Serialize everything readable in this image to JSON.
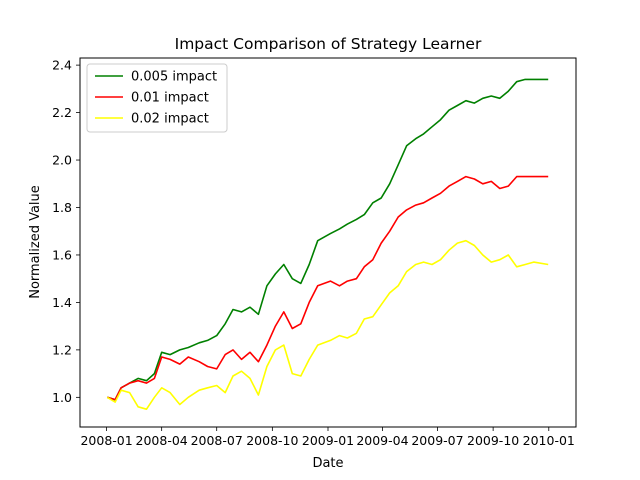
{
  "chart_data": {
    "type": "line",
    "title": "Impact Comparison of Strategy Learner",
    "xlabel": "Date",
    "ylabel": "Normalized Value",
    "x_tick_labels": [
      "2008-01",
      "2008-04",
      "2008-07",
      "2008-10",
      "2009-01",
      "2009-04",
      "2009-07",
      "2009-10",
      "2010-01"
    ],
    "x_ticks": [
      "2008-01-01",
      "2008-04-01",
      "2008-07-01",
      "2008-10-01",
      "2009-01-01",
      "2009-04-01",
      "2009-07-01",
      "2009-10-01",
      "2010-01-01"
    ],
    "xlim": [
      "2007-11-18",
      "2010-02-15"
    ],
    "y_tick_labels": [
      "1.0",
      "1.2",
      "1.4",
      "1.6",
      "1.8",
      "2.0",
      "2.2",
      "2.4"
    ],
    "y_ticks": [
      1.0,
      1.2,
      1.4,
      1.6,
      1.8,
      2.0,
      2.2,
      2.4
    ],
    "ylim": [
      0.875,
      2.43
    ],
    "grid": false,
    "legend": "top-left",
    "series": [
      {
        "name": "0.005 impact",
        "color": "#008000",
        "points": [
          [
            "2008-01-02",
            1.0
          ],
          [
            "2008-01-15",
            0.99
          ],
          [
            "2008-01-25",
            1.04
          ],
          [
            "2008-02-08",
            1.06
          ],
          [
            "2008-02-22",
            1.08
          ],
          [
            "2008-03-07",
            1.07
          ],
          [
            "2008-03-20",
            1.1
          ],
          [
            "2008-04-01",
            1.19
          ],
          [
            "2008-04-15",
            1.18
          ],
          [
            "2008-05-01",
            1.2
          ],
          [
            "2008-05-15",
            1.21
          ],
          [
            "2008-06-02",
            1.23
          ],
          [
            "2008-06-16",
            1.24
          ],
          [
            "2008-07-01",
            1.26
          ],
          [
            "2008-07-15",
            1.31
          ],
          [
            "2008-07-28",
            1.37
          ],
          [
            "2008-08-11",
            1.36
          ],
          [
            "2008-08-25",
            1.38
          ],
          [
            "2008-09-08",
            1.35
          ],
          [
            "2008-09-22",
            1.47
          ],
          [
            "2008-10-06",
            1.52
          ],
          [
            "2008-10-20",
            1.56
          ],
          [
            "2008-11-03",
            1.5
          ],
          [
            "2008-11-17",
            1.48
          ],
          [
            "2008-12-01",
            1.56
          ],
          [
            "2008-12-15",
            1.66
          ],
          [
            "2009-01-05",
            1.69
          ],
          [
            "2009-01-20",
            1.71
          ],
          [
            "2009-02-02",
            1.73
          ],
          [
            "2009-02-17",
            1.75
          ],
          [
            "2009-03-02",
            1.77
          ],
          [
            "2009-03-16",
            1.82
          ],
          [
            "2009-03-30",
            1.84
          ],
          [
            "2009-04-13",
            1.9
          ],
          [
            "2009-04-27",
            1.98
          ],
          [
            "2009-05-11",
            2.06
          ],
          [
            "2009-05-26",
            2.09
          ],
          [
            "2009-06-08",
            2.11
          ],
          [
            "2009-06-22",
            2.14
          ],
          [
            "2009-07-06",
            2.17
          ],
          [
            "2009-07-20",
            2.21
          ],
          [
            "2009-08-03",
            2.23
          ],
          [
            "2009-08-17",
            2.25
          ],
          [
            "2009-08-31",
            2.24
          ],
          [
            "2009-09-14",
            2.26
          ],
          [
            "2009-09-28",
            2.27
          ],
          [
            "2009-10-12",
            2.26
          ],
          [
            "2009-10-26",
            2.29
          ],
          [
            "2009-11-09",
            2.33
          ],
          [
            "2009-11-23",
            2.34
          ],
          [
            "2009-12-07",
            2.34
          ],
          [
            "2009-12-31",
            2.34
          ]
        ]
      },
      {
        "name": "0.01 impact",
        "color": "#ff0000",
        "points": [
          [
            "2008-01-02",
            1.0
          ],
          [
            "2008-01-15",
            0.99
          ],
          [
            "2008-01-25",
            1.04
          ],
          [
            "2008-02-08",
            1.06
          ],
          [
            "2008-02-22",
            1.07
          ],
          [
            "2008-03-07",
            1.06
          ],
          [
            "2008-03-20",
            1.08
          ],
          [
            "2008-04-01",
            1.17
          ],
          [
            "2008-04-15",
            1.16
          ],
          [
            "2008-05-01",
            1.14
          ],
          [
            "2008-05-15",
            1.17
          ],
          [
            "2008-06-02",
            1.15
          ],
          [
            "2008-06-16",
            1.13
          ],
          [
            "2008-07-01",
            1.12
          ],
          [
            "2008-07-15",
            1.18
          ],
          [
            "2008-07-28",
            1.2
          ],
          [
            "2008-08-11",
            1.16
          ],
          [
            "2008-08-25",
            1.19
          ],
          [
            "2008-09-08",
            1.15
          ],
          [
            "2008-09-22",
            1.22
          ],
          [
            "2008-10-06",
            1.3
          ],
          [
            "2008-10-20",
            1.36
          ],
          [
            "2008-11-03",
            1.29
          ],
          [
            "2008-11-17",
            1.31
          ],
          [
            "2008-12-01",
            1.4
          ],
          [
            "2008-12-15",
            1.47
          ],
          [
            "2009-01-05",
            1.49
          ],
          [
            "2009-01-20",
            1.47
          ],
          [
            "2009-02-02",
            1.49
          ],
          [
            "2009-02-17",
            1.5
          ],
          [
            "2009-03-02",
            1.55
          ],
          [
            "2009-03-16",
            1.58
          ],
          [
            "2009-03-30",
            1.65
          ],
          [
            "2009-04-13",
            1.7
          ],
          [
            "2009-04-27",
            1.76
          ],
          [
            "2009-05-11",
            1.79
          ],
          [
            "2009-05-26",
            1.81
          ],
          [
            "2009-06-08",
            1.82
          ],
          [
            "2009-06-22",
            1.84
          ],
          [
            "2009-07-06",
            1.86
          ],
          [
            "2009-07-20",
            1.89
          ],
          [
            "2009-08-03",
            1.91
          ],
          [
            "2009-08-17",
            1.93
          ],
          [
            "2009-08-31",
            1.92
          ],
          [
            "2009-09-14",
            1.9
          ],
          [
            "2009-09-28",
            1.91
          ],
          [
            "2009-10-12",
            1.88
          ],
          [
            "2009-10-26",
            1.89
          ],
          [
            "2009-11-09",
            1.93
          ],
          [
            "2009-11-23",
            1.93
          ],
          [
            "2009-12-07",
            1.93
          ],
          [
            "2009-12-31",
            1.93
          ]
        ]
      },
      {
        "name": "0.02 impact",
        "color": "#ffff00",
        "points": [
          [
            "2008-01-02",
            1.0
          ],
          [
            "2008-01-15",
            0.98
          ],
          [
            "2008-01-25",
            1.03
          ],
          [
            "2008-02-08",
            1.02
          ],
          [
            "2008-02-22",
            0.96
          ],
          [
            "2008-03-07",
            0.95
          ],
          [
            "2008-03-20",
            1.0
          ],
          [
            "2008-04-01",
            1.04
          ],
          [
            "2008-04-15",
            1.02
          ],
          [
            "2008-05-01",
            0.97
          ],
          [
            "2008-05-15",
            1.0
          ],
          [
            "2008-06-02",
            1.03
          ],
          [
            "2008-06-16",
            1.04
          ],
          [
            "2008-07-01",
            1.05
          ],
          [
            "2008-07-15",
            1.02
          ],
          [
            "2008-07-28",
            1.09
          ],
          [
            "2008-08-11",
            1.11
          ],
          [
            "2008-08-25",
            1.08
          ],
          [
            "2008-09-08",
            1.01
          ],
          [
            "2008-09-22",
            1.13
          ],
          [
            "2008-10-06",
            1.2
          ],
          [
            "2008-10-20",
            1.22
          ],
          [
            "2008-11-03",
            1.1
          ],
          [
            "2008-11-17",
            1.09
          ],
          [
            "2008-12-01",
            1.16
          ],
          [
            "2008-12-15",
            1.22
          ],
          [
            "2009-01-05",
            1.24
          ],
          [
            "2009-01-20",
            1.26
          ],
          [
            "2009-02-02",
            1.25
          ],
          [
            "2009-02-17",
            1.27
          ],
          [
            "2009-03-02",
            1.33
          ],
          [
            "2009-03-16",
            1.34
          ],
          [
            "2009-03-30",
            1.39
          ],
          [
            "2009-04-13",
            1.44
          ],
          [
            "2009-04-27",
            1.47
          ],
          [
            "2009-05-11",
            1.53
          ],
          [
            "2009-05-26",
            1.56
          ],
          [
            "2009-06-08",
            1.57
          ],
          [
            "2009-06-22",
            1.56
          ],
          [
            "2009-07-06",
            1.58
          ],
          [
            "2009-07-20",
            1.62
          ],
          [
            "2009-08-03",
            1.65
          ],
          [
            "2009-08-17",
            1.66
          ],
          [
            "2009-08-31",
            1.64
          ],
          [
            "2009-09-14",
            1.6
          ],
          [
            "2009-09-28",
            1.57
          ],
          [
            "2009-10-12",
            1.58
          ],
          [
            "2009-10-26",
            1.6
          ],
          [
            "2009-11-09",
            1.55
          ],
          [
            "2009-11-23",
            1.56
          ],
          [
            "2009-12-07",
            1.57
          ],
          [
            "2009-12-31",
            1.56
          ]
        ]
      }
    ]
  }
}
